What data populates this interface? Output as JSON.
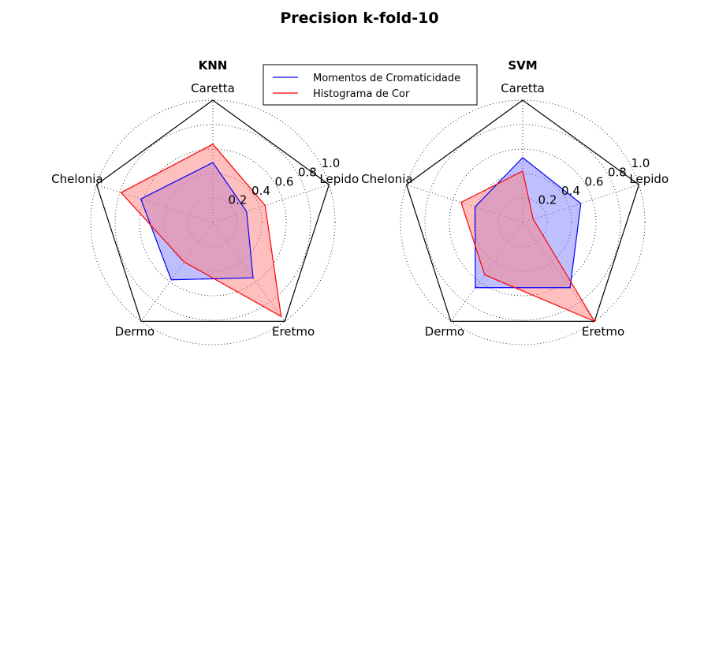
{
  "title": "Precision k-fold-10",
  "legend": {
    "placement": "top-center",
    "entries": [
      {
        "name": "Momentos de Cromaticidade",
        "color": "#0000ff"
      },
      {
        "name": "Histograma de Cor",
        "color": "#ff0000"
      }
    ]
  },
  "chart_data": [
    {
      "type": "radar",
      "title": "KNN",
      "axes": [
        "Caretta",
        "Lepido",
        "Eretmo",
        "Dermo",
        "Chelonia"
      ],
      "rlim": [
        0,
        1.0
      ],
      "rticks": [
        "0.2",
        "0.4",
        "0.6",
        "0.8",
        "1.0"
      ],
      "grid": true,
      "series": [
        {
          "name": "Momentos de Cromaticidade",
          "color": "#0000ff",
          "fill": "#8080ff",
          "values": [
            0.49,
            0.29,
            0.56,
            0.58,
            0.62
          ]
        },
        {
          "name": "Histograma de Cor",
          "color": "#ff0000",
          "fill": "#ff8080",
          "values": [
            0.64,
            0.45,
            0.95,
            0.4,
            0.79
          ]
        }
      ]
    },
    {
      "type": "radar",
      "title": "SVM",
      "axes": [
        "Caretta",
        "Lepido",
        "Eretmo",
        "Dermo",
        "Chelonia"
      ],
      "rlim": [
        0,
        1.0
      ],
      "rticks": [
        "0.2",
        "0.4",
        "0.6",
        "0.8",
        "1.0"
      ],
      "grid": true,
      "series": [
        {
          "name": "Momentos de Cromaticidade",
          "color": "#0000ff",
          "fill": "#8080ff",
          "values": [
            0.53,
            0.5,
            0.66,
            0.66,
            0.41
          ]
        },
        {
          "name": "Histograma de Cor",
          "color": "#ff0000",
          "fill": "#ff8080",
          "values": [
            0.42,
            0.09,
            1.0,
            0.53,
            0.53
          ]
        }
      ]
    }
  ]
}
